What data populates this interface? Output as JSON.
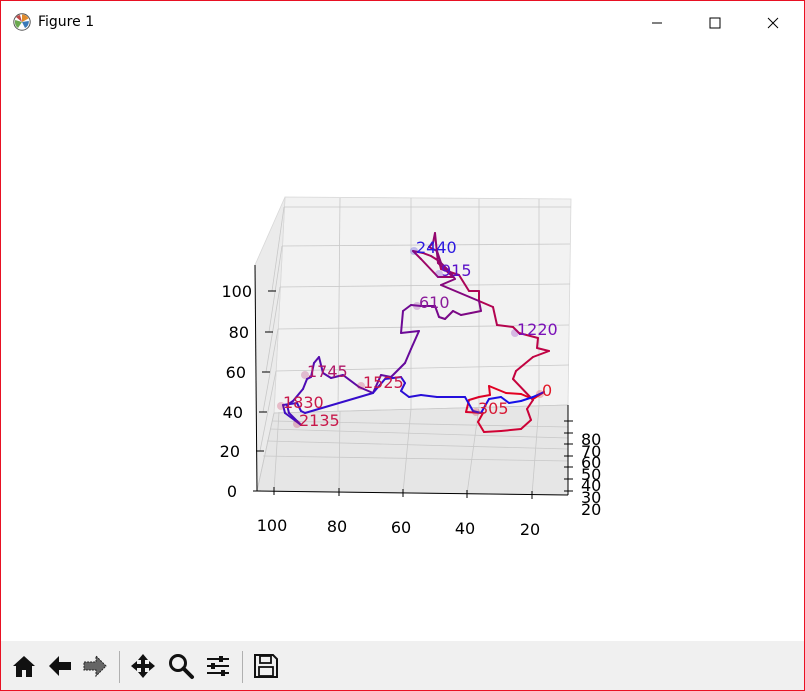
{
  "window": {
    "title": "Figure 1",
    "accent_border": "#e81123"
  },
  "toolbar": {
    "items": [
      {
        "name": "home-button",
        "icon": "home-icon"
      },
      {
        "name": "back-button",
        "icon": "arrow-left-icon"
      },
      {
        "name": "forward-button",
        "icon": "arrow-right-icon"
      },
      {
        "name": "pan-button",
        "icon": "move-icon"
      },
      {
        "name": "zoom-button",
        "icon": "magnifier-icon"
      },
      {
        "name": "configure-subplots-button",
        "icon": "sliders-icon"
      },
      {
        "name": "save-button",
        "icon": "floppy-disk-icon"
      }
    ]
  },
  "chart_data": {
    "type": "line",
    "projection": "3d",
    "title": "",
    "z_ticks": [
      "0",
      "20",
      "40",
      "60",
      "80",
      "100"
    ],
    "x_ticks": [
      "100",
      "80",
      "60",
      "40",
      "20"
    ],
    "y_ticks": [
      "20",
      "30",
      "40",
      "50",
      "60",
      "70",
      "80"
    ],
    "color_gradient": {
      "start": "#e8001c",
      "end": "#1010f0"
    },
    "annotations": [
      "0",
      "305",
      "610",
      "915",
      "1220",
      "1525",
      "1830",
      "2135",
      "2440",
      "1745"
    ],
    "annotation_colors": {
      "0": "#e21828",
      "305": "#d81a35",
      "610": "#8a1a9a",
      "915": "#5a10c8",
      "1220": "#7a10b8",
      "1525": "#c8184a",
      "1830": "#c8184a",
      "2135": "#c8184a",
      "2440": "#2a18e0",
      "1745": "#b01868"
    }
  }
}
